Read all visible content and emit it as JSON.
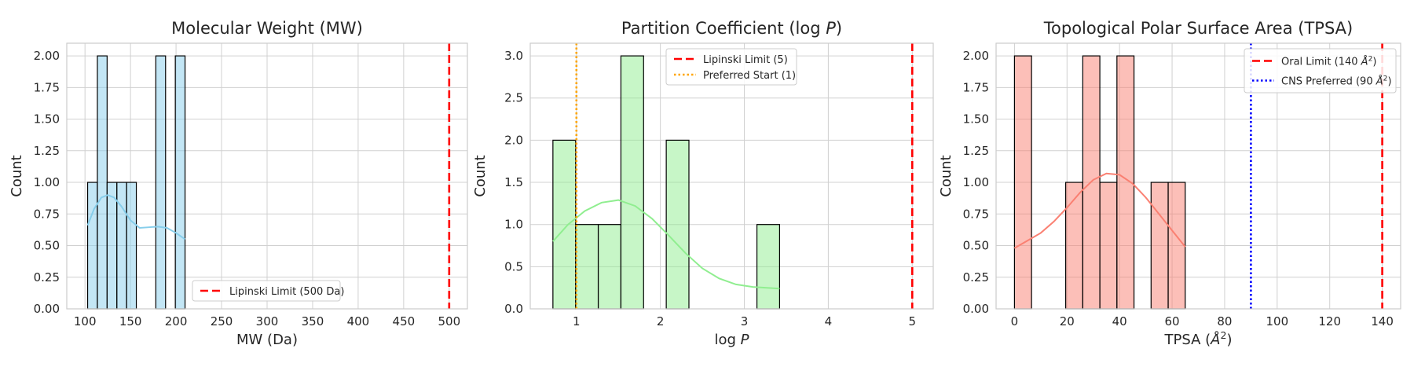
{
  "chart_data": [
    {
      "type": "histogram",
      "title": "Molecular Weight (MW)",
      "xlabel": "MW (Da)",
      "ylabel": "Count",
      "xlim": [
        80,
        520
      ],
      "ylim": [
        0,
        2.1
      ],
      "xticks": [
        100,
        150,
        200,
        250,
        300,
        350,
        400,
        450,
        500
      ],
      "yticks": [
        0,
        0.25,
        0.5,
        0.75,
        1.0,
        1.25,
        1.5,
        1.75,
        2.0
      ],
      "xtick_labels": [
        "100",
        "150",
        "200",
        "250",
        "300",
        "350",
        "400",
        "450",
        "500"
      ],
      "ytick_labels": [
        "0.00",
        "0.25",
        "0.50",
        "0.75",
        "1.00",
        "1.25",
        "1.50",
        "1.75",
        "2.00"
      ],
      "grid": true,
      "bar_color": "#87ceeb",
      "bins": [
        {
          "x0": 102.9,
          "x1": 113.6,
          "count": 1
        },
        {
          "x0": 113.6,
          "x1": 124.3,
          "count": 2
        },
        {
          "x0": 124.3,
          "x1": 135.0,
          "count": 1
        },
        {
          "x0": 135.0,
          "x1": 145.7,
          "count": 1
        },
        {
          "x0": 145.7,
          "x1": 156.4,
          "count": 1
        },
        {
          "x0": 156.4,
          "x1": 167.1,
          "count": 0
        },
        {
          "x0": 167.1,
          "x1": 177.8,
          "count": 0
        },
        {
          "x0": 177.8,
          "x1": 188.5,
          "count": 2
        },
        {
          "x0": 188.5,
          "x1": 199.2,
          "count": 0
        },
        {
          "x0": 199.2,
          "x1": 209.9,
          "count": 2
        }
      ],
      "kde": {
        "color": "#87ceeb",
        "x": [
          102.9,
          110,
          118,
          125,
          132,
          140,
          150,
          160,
          170,
          180,
          190,
          200,
          209.9
        ],
        "y": [
          0.66,
          0.79,
          0.88,
          0.9,
          0.88,
          0.81,
          0.7,
          0.64,
          0.645,
          0.65,
          0.64,
          0.6,
          0.55
        ]
      },
      "vlines": [
        {
          "x": 500,
          "color": "#ff0000",
          "style": "dashed",
          "label": "Lipinski Limit (500 Da)"
        }
      ],
      "legend_position": "lower-center"
    },
    {
      "type": "histogram",
      "title": "Partition Coefficient (log P)",
      "title_parts": [
        "Partition Coefficient (log ",
        "P",
        ")"
      ],
      "xlabel": "log P",
      "xlabel_parts": [
        "log ",
        "P"
      ],
      "ylabel": "Count",
      "xlim": [
        0.45,
        5.25
      ],
      "ylim": [
        0,
        3.15
      ],
      "xticks": [
        1,
        2,
        3,
        4,
        5
      ],
      "yticks": [
        0,
        0.5,
        1.0,
        1.5,
        2.0,
        2.5,
        3.0
      ],
      "xtick_labels": [
        "1",
        "2",
        "3",
        "4",
        "5"
      ],
      "ytick_labels": [
        "0.0",
        "0.5",
        "1.0",
        "1.5",
        "2.0",
        "2.5",
        "3.0"
      ],
      "grid": true,
      "bar_color": "#90ee90",
      "bins": [
        {
          "x0": 0.72,
          "x1": 0.99,
          "count": 2
        },
        {
          "x0": 0.99,
          "x1": 1.26,
          "count": 1
        },
        {
          "x0": 1.26,
          "x1": 1.53,
          "count": 1
        },
        {
          "x0": 1.53,
          "x1": 1.8,
          "count": 3
        },
        {
          "x0": 1.8,
          "x1": 2.07,
          "count": 0
        },
        {
          "x0": 2.07,
          "x1": 2.34,
          "count": 2
        },
        {
          "x0": 2.34,
          "x1": 2.61,
          "count": 0
        },
        {
          "x0": 2.61,
          "x1": 2.88,
          "count": 0
        },
        {
          "x0": 2.88,
          "x1": 3.15,
          "count": 0
        },
        {
          "x0": 3.15,
          "x1": 3.42,
          "count": 1
        }
      ],
      "kde": {
        "color": "#90ee90",
        "x": [
          0.72,
          0.9,
          1.1,
          1.3,
          1.5,
          1.7,
          1.9,
          2.1,
          2.3,
          2.5,
          2.7,
          2.9,
          3.1,
          3.42
        ],
        "y": [
          0.8,
          1.0,
          1.16,
          1.26,
          1.29,
          1.22,
          1.07,
          0.87,
          0.66,
          0.48,
          0.36,
          0.29,
          0.26,
          0.24
        ]
      },
      "vlines": [
        {
          "x": 5,
          "color": "#ff0000",
          "style": "dashed",
          "label": "Lipinski Limit (5)"
        },
        {
          "x": 1,
          "color": "#ffa500",
          "style": "dotted",
          "label": "Preferred Start (1)"
        }
      ],
      "legend_position": "upper-center"
    },
    {
      "type": "histogram",
      "title": "Topological Polar Surface Area (TPSA)",
      "xlabel": "TPSA (Å²)",
      "xlabel_parts": [
        "TPSA (",
        "Å",
        "2",
        ")"
      ],
      "ylabel": "Count",
      "xlim": [
        -7,
        147
      ],
      "ylim": [
        0,
        2.1
      ],
      "xticks": [
        0,
        20,
        40,
        60,
        80,
        100,
        120,
        140
      ],
      "yticks": [
        0,
        0.25,
        0.5,
        0.75,
        1.0,
        1.25,
        1.5,
        1.75,
        2.0
      ],
      "xtick_labels": [
        "0",
        "20",
        "40",
        "60",
        "80",
        "100",
        "120",
        "140"
      ],
      "ytick_labels": [
        "0.00",
        "0.25",
        "0.50",
        "0.75",
        "1.00",
        "1.25",
        "1.50",
        "1.75",
        "2.00"
      ],
      "grid": true,
      "bar_color": "#fa8072",
      "bins": [
        {
          "x0": 0.0,
          "x1": 6.5,
          "count": 2
        },
        {
          "x0": 6.5,
          "x1": 13.0,
          "count": 0
        },
        {
          "x0": 13.0,
          "x1": 19.5,
          "count": 0
        },
        {
          "x0": 19.5,
          "x1": 26.0,
          "count": 1
        },
        {
          "x0": 26.0,
          "x1": 32.5,
          "count": 2
        },
        {
          "x0": 32.5,
          "x1": 39.0,
          "count": 1
        },
        {
          "x0": 39.0,
          "x1": 45.5,
          "count": 2
        },
        {
          "x0": 45.5,
          "x1": 52.0,
          "count": 0
        },
        {
          "x0": 52.0,
          "x1": 58.5,
          "count": 1
        },
        {
          "x0": 58.5,
          "x1": 65.0,
          "count": 1
        }
      ],
      "kde": {
        "color": "#fa8072",
        "x": [
          0,
          5,
          10,
          15,
          20,
          25,
          30,
          35,
          40,
          45,
          50,
          55,
          60,
          65
        ],
        "y": [
          0.48,
          0.54,
          0.6,
          0.69,
          0.8,
          0.92,
          1.02,
          1.07,
          1.06,
          0.99,
          0.88,
          0.75,
          0.62,
          0.49
        ]
      },
      "vlines": [
        {
          "x": 140,
          "color": "#ff0000",
          "style": "dashed",
          "label": "Oral Limit (140 Å²)",
          "label_parts": [
            "Oral Limit (140 ",
            "Å",
            "2",
            ")"
          ]
        },
        {
          "x": 90,
          "color": "#0000ff",
          "style": "dotted",
          "label": "CNS Preferred (90 Å²)",
          "label_parts": [
            "CNS Preferred (90 ",
            "Å",
            "2",
            ")"
          ]
        }
      ],
      "legend_position": "upper-right"
    }
  ]
}
